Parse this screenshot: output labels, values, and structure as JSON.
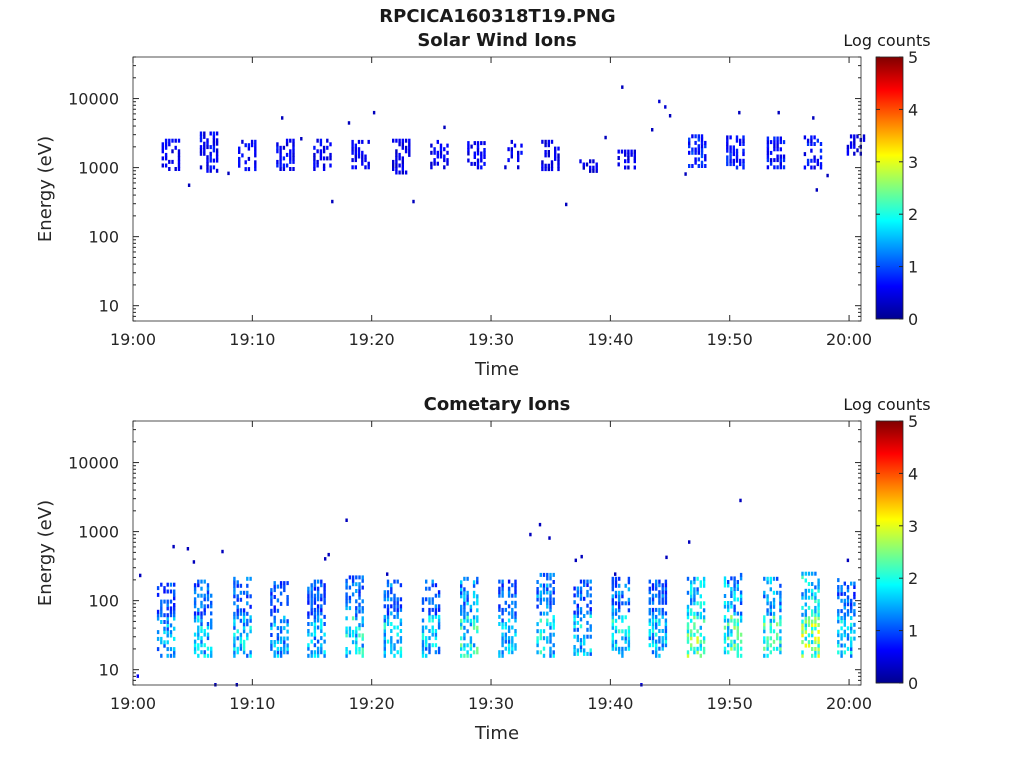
{
  "figure_title": "RPCICA160318T19.PNG",
  "chart_data": [
    {
      "type": "heatmap",
      "title": "Solar Wind Ions",
      "xlabel": "Time",
      "ylabel": "Energy (eV)",
      "xticks": [
        "19:00",
        "19:10",
        "19:20",
        "19:30",
        "19:40",
        "19:50",
        "20:00"
      ],
      "xlim": [
        "19:00",
        "20:01"
      ],
      "yscale": "log",
      "yticks": [
        10,
        100,
        1000,
        10000
      ],
      "ylim": [
        6,
        40000
      ],
      "colorbar": {
        "label": "Log counts",
        "ticks": [
          0,
          1,
          2,
          3,
          4,
          5
        ],
        "range": [
          0,
          5
        ],
        "colormap": "jet"
      },
      "clusters": [
        {
          "t": 3.2,
          "e_lo": 900,
          "e_hi": 2600,
          "level": 0.9
        },
        {
          "t": 6.4,
          "e_lo": 850,
          "e_hi": 3300,
          "level": 1.0
        },
        {
          "t": 9.6,
          "e_lo": 900,
          "e_hi": 2500,
          "level": 0.9
        },
        {
          "t": 12.8,
          "e_lo": 900,
          "e_hi": 2600,
          "level": 1.0
        },
        {
          "t": 15.9,
          "e_lo": 900,
          "e_hi": 2600,
          "level": 0.9
        },
        {
          "t": 19.1,
          "e_lo": 950,
          "e_hi": 2500,
          "level": 0.9
        },
        {
          "t": 22.5,
          "e_lo": 800,
          "e_hi": 2600,
          "level": 0.8
        },
        {
          "t": 25.7,
          "e_lo": 950,
          "e_hi": 2500,
          "level": 0.9
        },
        {
          "t": 28.8,
          "e_lo": 950,
          "e_hi": 2400,
          "level": 0.9
        },
        {
          "t": 31.9,
          "e_lo": 950,
          "e_hi": 2500,
          "level": 0.9
        },
        {
          "t": 35.0,
          "e_lo": 900,
          "e_hi": 2500,
          "level": 0.8
        },
        {
          "t": 38.2,
          "e_lo": 850,
          "e_hi": 1300,
          "level": 0.8
        },
        {
          "t": 41.4,
          "e_lo": 950,
          "e_hi": 1800,
          "level": 0.8
        },
        {
          "t": 47.3,
          "e_lo": 1000,
          "e_hi": 3000,
          "level": 1.3
        },
        {
          "t": 50.5,
          "e_lo": 950,
          "e_hi": 2900,
          "level": 1.2
        },
        {
          "t": 53.9,
          "e_lo": 950,
          "e_hi": 2800,
          "level": 1.1
        },
        {
          "t": 57.0,
          "e_lo": 950,
          "e_hi": 2900,
          "level": 1.1
        },
        {
          "t": 60.6,
          "e_lo": 1500,
          "e_hi": 3000,
          "level": 0.8
        }
      ],
      "points": [
        {
          "t": 4.6,
          "e": 550,
          "level": 0.3
        },
        {
          "t": 7.9,
          "e": 820,
          "level": 0.3
        },
        {
          "t": 12.4,
          "e": 5200,
          "level": 0.3
        },
        {
          "t": 14.0,
          "e": 2600,
          "level": 0.3
        },
        {
          "t": 16.6,
          "e": 320,
          "level": 0.3
        },
        {
          "t": 18.0,
          "e": 4400,
          "level": 0.3
        },
        {
          "t": 20.1,
          "e": 6200,
          "level": 0.3
        },
        {
          "t": 23.4,
          "e": 320,
          "level": 0.3
        },
        {
          "t": 26.0,
          "e": 3800,
          "level": 0.3
        },
        {
          "t": 36.2,
          "e": 290,
          "level": 0.3
        },
        {
          "t": 39.5,
          "e": 2700,
          "level": 0.3
        },
        {
          "t": 40.9,
          "e": 14500,
          "level": 0.3
        },
        {
          "t": 43.4,
          "e": 3500,
          "level": 0.3
        },
        {
          "t": 44.0,
          "e": 9000,
          "level": 0.4
        },
        {
          "t": 44.5,
          "e": 7500,
          "level": 0.4
        },
        {
          "t": 44.9,
          "e": 5600,
          "level": 0.3
        },
        {
          "t": 46.2,
          "e": 800,
          "level": 0.3
        },
        {
          "t": 50.7,
          "e": 6200,
          "level": 0.3
        },
        {
          "t": 54.0,
          "e": 6200,
          "level": 0.3
        },
        {
          "t": 56.9,
          "e": 5200,
          "level": 0.3
        },
        {
          "t": 57.2,
          "e": 470,
          "level": 0.3
        },
        {
          "t": 58.1,
          "e": 760,
          "level": 0.3
        }
      ]
    },
    {
      "type": "heatmap",
      "title": "Cometary Ions",
      "xlabel": "Time",
      "ylabel": "Energy (eV)",
      "xticks": [
        "19:00",
        "19:10",
        "19:20",
        "19:30",
        "19:40",
        "19:50",
        "20:00"
      ],
      "xlim": [
        "19:00",
        "20:01"
      ],
      "yscale": "log",
      "yticks": [
        10,
        100,
        1000,
        10000
      ],
      "ylim": [
        6,
        40000
      ],
      "colorbar": {
        "label": "Log counts",
        "ticks": [
          0,
          1,
          2,
          3,
          4,
          5
        ],
        "range": [
          0,
          5
        ],
        "colormap": "jet"
      },
      "clusters": [
        {
          "t": 2.8,
          "e_lo": 15,
          "e_hi": 180,
          "level": 1.6
        },
        {
          "t": 5.9,
          "e_lo": 15,
          "e_hi": 200,
          "level": 1.8
        },
        {
          "t": 9.2,
          "e_lo": 15,
          "e_hi": 220,
          "level": 1.8
        },
        {
          "t": 12.3,
          "e_lo": 15,
          "e_hi": 190,
          "level": 1.6
        },
        {
          "t": 15.4,
          "e_lo": 15,
          "e_hi": 200,
          "level": 1.7
        },
        {
          "t": 18.6,
          "e_lo": 15,
          "e_hi": 230,
          "level": 2.0
        },
        {
          "t": 21.8,
          "e_lo": 15,
          "e_hi": 200,
          "level": 1.9
        },
        {
          "t": 25.0,
          "e_lo": 15,
          "e_hi": 200,
          "level": 1.8
        },
        {
          "t": 28.2,
          "e_lo": 15,
          "e_hi": 220,
          "level": 2.2
        },
        {
          "t": 31.4,
          "e_lo": 15,
          "e_hi": 200,
          "level": 1.7
        },
        {
          "t": 34.6,
          "e_lo": 15,
          "e_hi": 250,
          "level": 2.0
        },
        {
          "t": 37.7,
          "e_lo": 16,
          "e_hi": 200,
          "level": 1.8
        },
        {
          "t": 40.9,
          "e_lo": 15,
          "e_hi": 220,
          "level": 2.0
        },
        {
          "t": 44.0,
          "e_lo": 15,
          "e_hi": 200,
          "level": 1.8
        },
        {
          "t": 47.2,
          "e_lo": 15,
          "e_hi": 220,
          "level": 2.6
        },
        {
          "t": 50.3,
          "e_lo": 15,
          "e_hi": 250,
          "level": 2.4
        },
        {
          "t": 53.6,
          "e_lo": 15,
          "e_hi": 220,
          "level": 2.3
        },
        {
          "t": 56.8,
          "e_lo": 15,
          "e_hi": 260,
          "level": 2.8
        },
        {
          "t": 59.8,
          "e_lo": 15,
          "e_hi": 210,
          "level": 1.8
        }
      ],
      "points": [
        {
          "t": 0.5,
          "e": 230,
          "level": 0.3
        },
        {
          "t": 0.3,
          "e": 8,
          "level": 0.6
        },
        {
          "t": 3.3,
          "e": 600,
          "level": 0.3
        },
        {
          "t": 4.5,
          "e": 560,
          "level": 0.3
        },
        {
          "t": 5.0,
          "e": 360,
          "level": 0.3
        },
        {
          "t": 6.8,
          "e": 6,
          "level": 0.3
        },
        {
          "t": 7.4,
          "e": 510,
          "level": 0.3
        },
        {
          "t": 8.6,
          "e": 6,
          "level": 0.3
        },
        {
          "t": 16.0,
          "e": 400,
          "level": 0.3
        },
        {
          "t": 16.3,
          "e": 460,
          "level": 0.3
        },
        {
          "t": 17.8,
          "e": 1450,
          "level": 0.3
        },
        {
          "t": 21.2,
          "e": 240,
          "level": 0.3
        },
        {
          "t": 33.2,
          "e": 900,
          "level": 0.3
        },
        {
          "t": 34.0,
          "e": 1250,
          "level": 0.3
        },
        {
          "t": 34.8,
          "e": 800,
          "level": 0.3
        },
        {
          "t": 37.0,
          "e": 380,
          "level": 0.3
        },
        {
          "t": 37.5,
          "e": 430,
          "level": 0.3
        },
        {
          "t": 40.3,
          "e": 240,
          "level": 0.3
        },
        {
          "t": 42.5,
          "e": 6,
          "level": 0.5
        },
        {
          "t": 44.6,
          "e": 420,
          "level": 0.3
        },
        {
          "t": 46.5,
          "e": 700,
          "level": 0.3
        },
        {
          "t": 50.8,
          "e": 2800,
          "level": 0.3
        },
        {
          "t": 59.8,
          "e": 380,
          "level": 0.3
        }
      ]
    }
  ]
}
